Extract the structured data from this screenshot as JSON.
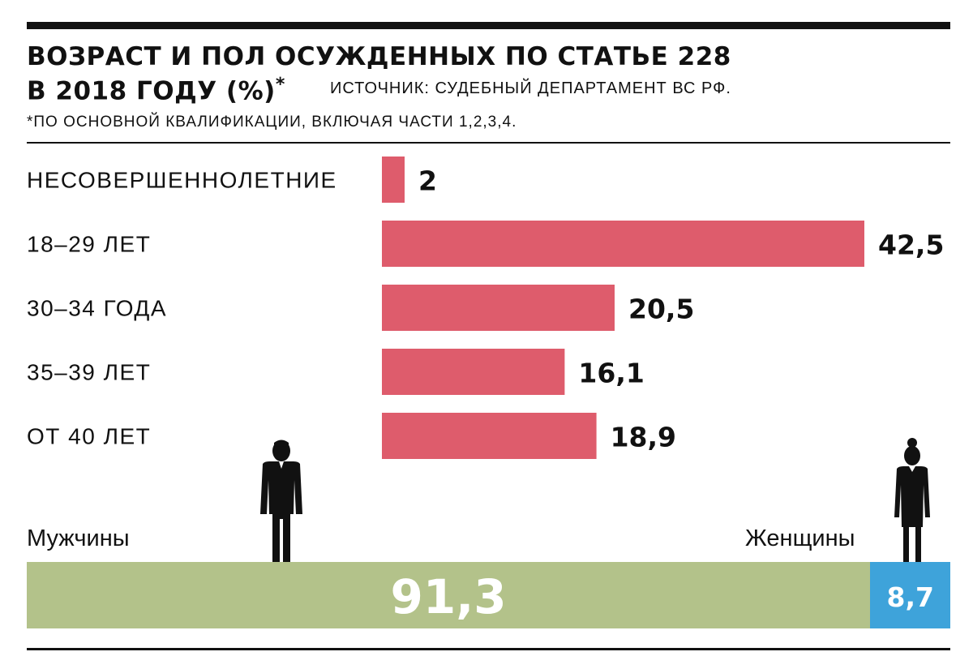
{
  "header": {
    "title_line1": "ВОЗРАСТ И ПОЛ ОСУЖДЕННЫХ ПО СТАТЬЕ 228",
    "title_line2": "В 2018 ГОДУ (%)",
    "title_mark": "*",
    "source": "ИСТОЧНИК: СУДЕБНЫЙ ДЕПАРТАМЕНТ ВС РФ.",
    "footnote": "*ПО ОСНОВНОЙ КВАЛИФИКАЦИИ, ВКЛЮЧАЯ ЧАСТИ 1,2,3,4."
  },
  "chart_data": [
    {
      "type": "bar",
      "orientation": "horizontal",
      "categories": [
        "НЕСОВЕРШЕННОЛЕТНИЕ",
        "18–29 ЛЕТ",
        "30–34 ГОДА",
        "35–39 ЛЕТ",
        "ОТ 40 ЛЕТ"
      ],
      "values": [
        2,
        42.5,
        20.5,
        16.1,
        18.9
      ],
      "value_labels": [
        "2",
        "42,5",
        "20,5",
        "16,1",
        "18,9"
      ],
      "xlim": [
        0,
        42.5
      ],
      "grid": false,
      "color": "#de5c6c"
    },
    {
      "type": "bar",
      "orientation": "stacked-horizontal",
      "series": [
        {
          "name": "Мужчины",
          "value": 91.3,
          "value_label": "91,3",
          "color": "#b3c28a",
          "icon": "man-icon"
        },
        {
          "name": "Женщины",
          "value": 8.7,
          "value_label": "8,7",
          "color": "#3ea3da",
          "icon": "woman-icon"
        }
      ]
    }
  ]
}
